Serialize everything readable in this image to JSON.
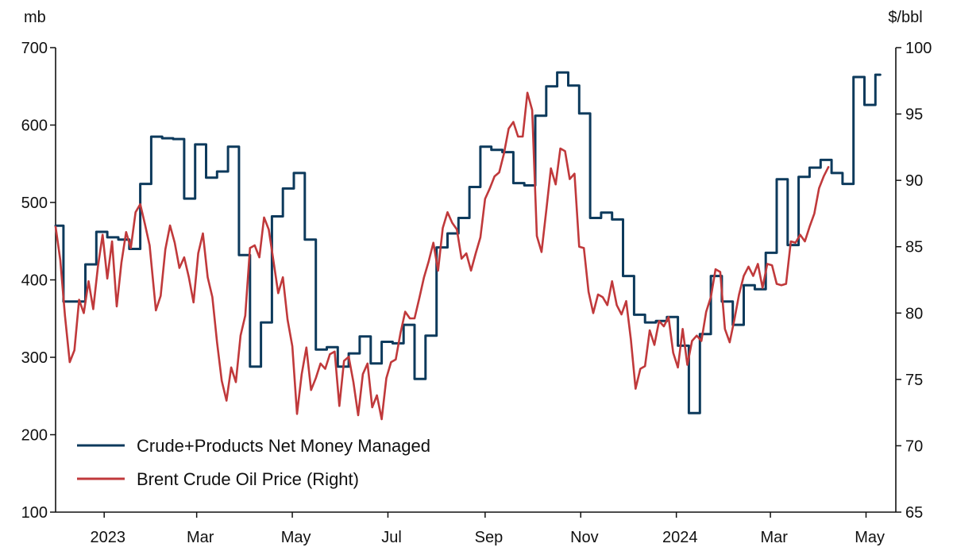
{
  "chart_data": {
    "type": "line",
    "title": "",
    "left_axis": {
      "unit": "mb",
      "range": [
        100,
        700
      ],
      "ticks": [
        100,
        200,
        300,
        400,
        500,
        600,
        700
      ]
    },
    "right_axis": {
      "unit": "$/bbl",
      "range": [
        65,
        100
      ],
      "ticks": [
        65,
        70,
        75,
        80,
        85,
        90,
        95,
        100
      ]
    },
    "x_axis": {
      "range": [
        "2022-12-01",
        "2024-05-20"
      ],
      "tick_dates": [
        "2023-01-01",
        "2023-03-01",
        "2023-05-01",
        "2023-07-01",
        "2023-09-01",
        "2023-11-01",
        "2024-01-01",
        "2024-03-01",
        "2024-05-01"
      ],
      "tick_labels": [
        "2023",
        "Mar",
        "May",
        "Jul",
        "Sep",
        "Nov",
        "2024",
        "Mar",
        "May"
      ]
    },
    "grid": false,
    "legend_position": "bottom-left",
    "series": [
      {
        "name": "Crude+Products Net Money Managed",
        "axis": "left",
        "color": "#0d3a5c",
        "step": true,
        "points": [
          [
            "2022-12-01",
            470
          ],
          [
            "2022-12-06",
            372
          ],
          [
            "2022-12-13",
            372
          ],
          [
            "2022-12-20",
            420
          ],
          [
            "2022-12-27",
            462
          ],
          [
            "2023-01-03",
            455
          ],
          [
            "2023-01-10",
            452
          ],
          [
            "2023-01-17",
            440
          ],
          [
            "2023-01-24",
            524
          ],
          [
            "2023-01-31",
            585
          ],
          [
            "2023-02-07",
            583
          ],
          [
            "2023-02-14",
            582
          ],
          [
            "2023-02-21",
            505
          ],
          [
            "2023-02-28",
            575
          ],
          [
            "2023-03-07",
            532
          ],
          [
            "2023-03-14",
            540
          ],
          [
            "2023-03-21",
            572
          ],
          [
            "2023-03-28",
            432
          ],
          [
            "2023-04-04",
            288
          ],
          [
            "2023-04-11",
            345
          ],
          [
            "2023-04-18",
            482
          ],
          [
            "2023-04-25",
            518
          ],
          [
            "2023-05-02",
            538
          ],
          [
            "2023-05-09",
            452
          ],
          [
            "2023-05-16",
            310
          ],
          [
            "2023-05-23",
            313
          ],
          [
            "2023-05-30",
            288
          ],
          [
            "2023-06-06",
            305
          ],
          [
            "2023-06-13",
            327
          ],
          [
            "2023-06-20",
            292
          ],
          [
            "2023-06-27",
            320
          ],
          [
            "2023-07-04",
            318
          ],
          [
            "2023-07-11",
            342
          ],
          [
            "2023-07-18",
            272
          ],
          [
            "2023-07-25",
            328
          ],
          [
            "2023-08-01",
            442
          ],
          [
            "2023-08-08",
            460
          ],
          [
            "2023-08-15",
            480
          ],
          [
            "2023-08-22",
            520
          ],
          [
            "2023-08-29",
            572
          ],
          [
            "2023-09-05",
            568
          ],
          [
            "2023-09-12",
            565
          ],
          [
            "2023-09-19",
            525
          ],
          [
            "2023-09-26",
            522
          ],
          [
            "2023-10-03",
            612
          ],
          [
            "2023-10-10",
            650
          ],
          [
            "2023-10-17",
            668
          ],
          [
            "2023-10-24",
            651
          ],
          [
            "2023-10-31",
            615
          ],
          [
            "2023-11-07",
            480
          ],
          [
            "2023-11-14",
            487
          ],
          [
            "2023-11-21",
            478
          ],
          [
            "2023-11-28",
            405
          ],
          [
            "2023-12-05",
            355
          ],
          [
            "2023-12-12",
            345
          ],
          [
            "2023-12-19",
            347
          ],
          [
            "2023-12-26",
            352
          ],
          [
            "2024-01-02",
            315
          ],
          [
            "2024-01-09",
            228
          ],
          [
            "2024-01-16",
            330
          ],
          [
            "2024-01-23",
            405
          ],
          [
            "2024-01-30",
            372
          ],
          [
            "2024-02-06",
            342
          ],
          [
            "2024-02-13",
            393
          ],
          [
            "2024-02-20",
            388
          ],
          [
            "2024-02-27",
            435
          ],
          [
            "2024-03-05",
            530
          ],
          [
            "2024-03-12",
            445
          ],
          [
            "2024-03-19",
            533
          ],
          [
            "2024-03-26",
            545
          ],
          [
            "2024-04-02",
            555
          ],
          [
            "2024-04-09",
            538
          ],
          [
            "2024-04-16",
            524
          ],
          [
            "2024-04-23",
            662
          ],
          [
            "2024-04-30",
            626
          ],
          [
            "2024-05-07",
            665
          ],
          [
            "2024-05-10",
            665
          ]
        ]
      },
      {
        "name": "Brent Crude Oil Price (Right)",
        "axis": "right",
        "color": "#c0393b",
        "step": false,
        "points": [
          [
            "2022-12-01",
            86.5
          ],
          [
            "2022-12-04",
            84.0
          ],
          [
            "2022-12-07",
            79.8
          ],
          [
            "2022-12-10",
            76.3
          ],
          [
            "2022-12-13",
            77.2
          ],
          [
            "2022-12-16",
            81.0
          ],
          [
            "2022-12-19",
            80.0
          ],
          [
            "2022-12-22",
            82.4
          ],
          [
            "2022-12-25",
            80.3
          ],
          [
            "2022-12-28",
            83.5
          ],
          [
            "2022-12-31",
            85.9
          ],
          [
            "2023-01-03",
            82.6
          ],
          [
            "2023-01-06",
            85.4
          ],
          [
            "2023-01-09",
            80.5
          ],
          [
            "2023-01-12",
            83.8
          ],
          [
            "2023-01-15",
            86.1
          ],
          [
            "2023-01-18",
            84.9
          ],
          [
            "2023-01-21",
            87.6
          ],
          [
            "2023-01-24",
            88.2
          ],
          [
            "2023-01-27",
            86.7
          ],
          [
            "2023-01-30",
            85.1
          ],
          [
            "2023-02-03",
            80.2
          ],
          [
            "2023-02-06",
            81.3
          ],
          [
            "2023-02-09",
            84.8
          ],
          [
            "2023-02-12",
            86.6
          ],
          [
            "2023-02-15",
            85.3
          ],
          [
            "2023-02-18",
            83.4
          ],
          [
            "2023-02-21",
            84.2
          ],
          [
            "2023-02-24",
            82.7
          ],
          [
            "2023-02-27",
            80.8
          ],
          [
            "2023-03-02",
            84.5
          ],
          [
            "2023-03-05",
            86.0
          ],
          [
            "2023-03-08",
            82.7
          ],
          [
            "2023-03-11",
            81.2
          ],
          [
            "2023-03-14",
            77.8
          ],
          [
            "2023-03-17",
            74.9
          ],
          [
            "2023-03-20",
            73.4
          ],
          [
            "2023-03-23",
            75.9
          ],
          [
            "2023-03-26",
            74.8
          ],
          [
            "2023-03-29",
            78.3
          ],
          [
            "2023-04-01",
            79.8
          ],
          [
            "2023-04-04",
            84.9
          ],
          [
            "2023-04-07",
            85.1
          ],
          [
            "2023-04-10",
            84.2
          ],
          [
            "2023-04-13",
            87.2
          ],
          [
            "2023-04-16",
            86.3
          ],
          [
            "2023-04-19",
            83.9
          ],
          [
            "2023-04-22",
            81.5
          ],
          [
            "2023-04-25",
            82.7
          ],
          [
            "2023-04-28",
            79.5
          ],
          [
            "2023-05-01",
            77.5
          ],
          [
            "2023-05-04",
            72.4
          ],
          [
            "2023-05-07",
            75.4
          ],
          [
            "2023-05-10",
            77.4
          ],
          [
            "2023-05-13",
            74.2
          ],
          [
            "2023-05-16",
            75.1
          ],
          [
            "2023-05-19",
            76.2
          ],
          [
            "2023-05-22",
            75.8
          ],
          [
            "2023-05-25",
            76.9
          ],
          [
            "2023-05-28",
            77.1
          ],
          [
            "2023-05-31",
            73.0
          ],
          [
            "2023-06-03",
            76.4
          ],
          [
            "2023-06-06",
            76.7
          ],
          [
            "2023-06-09",
            74.8
          ],
          [
            "2023-06-12",
            72.3
          ],
          [
            "2023-06-15",
            75.4
          ],
          [
            "2023-06-18",
            76.2
          ],
          [
            "2023-06-21",
            72.9
          ],
          [
            "2023-06-24",
            73.8
          ],
          [
            "2023-06-27",
            72.0
          ],
          [
            "2023-06-30",
            75.1
          ],
          [
            "2023-07-03",
            76.3
          ],
          [
            "2023-07-06",
            76.5
          ],
          [
            "2023-07-09",
            78.5
          ],
          [
            "2023-07-12",
            80.1
          ],
          [
            "2023-07-15",
            79.6
          ],
          [
            "2023-07-18",
            79.6
          ],
          [
            "2023-07-21",
            81.1
          ],
          [
            "2023-07-24",
            82.7
          ],
          [
            "2023-07-27",
            83.9
          ],
          [
            "2023-07-30",
            85.3
          ],
          [
            "2023-08-02",
            83.2
          ],
          [
            "2023-08-05",
            86.4
          ],
          [
            "2023-08-08",
            87.6
          ],
          [
            "2023-08-11",
            86.8
          ],
          [
            "2023-08-14",
            86.3
          ],
          [
            "2023-08-17",
            84.1
          ],
          [
            "2023-08-20",
            84.5
          ],
          [
            "2023-08-23",
            83.2
          ],
          [
            "2023-08-26",
            84.5
          ],
          [
            "2023-08-29",
            85.7
          ],
          [
            "2023-09-01",
            88.6
          ],
          [
            "2023-09-04",
            89.4
          ],
          [
            "2023-09-07",
            90.3
          ],
          [
            "2023-09-10",
            90.6
          ],
          [
            "2023-09-13",
            92.0
          ],
          [
            "2023-09-16",
            93.9
          ],
          [
            "2023-09-19",
            94.4
          ],
          [
            "2023-09-22",
            93.3
          ],
          [
            "2023-09-25",
            93.3
          ],
          [
            "2023-09-28",
            96.6
          ],
          [
            "2023-10-01",
            95.3
          ],
          [
            "2023-10-04",
            85.8
          ],
          [
            "2023-10-07",
            84.6
          ],
          [
            "2023-10-10",
            87.7
          ],
          [
            "2023-10-13",
            90.9
          ],
          [
            "2023-10-16",
            89.7
          ],
          [
            "2023-10-19",
            92.4
          ],
          [
            "2023-10-22",
            92.2
          ],
          [
            "2023-10-25",
            90.1
          ],
          [
            "2023-10-28",
            90.5
          ],
          [
            "2023-10-31",
            85.0
          ],
          [
            "2023-11-03",
            84.9
          ],
          [
            "2023-11-06",
            81.6
          ],
          [
            "2023-11-09",
            80.0
          ],
          [
            "2023-11-12",
            81.4
          ],
          [
            "2023-11-15",
            81.2
          ],
          [
            "2023-11-18",
            80.6
          ],
          [
            "2023-11-21",
            82.4
          ],
          [
            "2023-11-24",
            80.6
          ],
          [
            "2023-11-27",
            79.9
          ],
          [
            "2023-11-30",
            80.9
          ],
          [
            "2023-12-03",
            78.0
          ],
          [
            "2023-12-06",
            74.3
          ],
          [
            "2023-12-09",
            75.8
          ],
          [
            "2023-12-12",
            76.0
          ],
          [
            "2023-12-15",
            78.7
          ],
          [
            "2023-12-18",
            77.6
          ],
          [
            "2023-12-21",
            79.4
          ],
          [
            "2023-12-24",
            79.0
          ],
          [
            "2023-12-27",
            79.7
          ],
          [
            "2023-12-30",
            77.0
          ],
          [
            "2024-01-02",
            75.9
          ],
          [
            "2024-01-05",
            78.8
          ],
          [
            "2024-01-08",
            76.1
          ],
          [
            "2024-01-11",
            77.9
          ],
          [
            "2024-01-14",
            78.3
          ],
          [
            "2024-01-17",
            77.9
          ],
          [
            "2024-01-20",
            80.1
          ],
          [
            "2024-01-23",
            81.2
          ],
          [
            "2024-01-26",
            83.3
          ],
          [
            "2024-01-29",
            83.1
          ],
          [
            "2024-02-01",
            78.8
          ],
          [
            "2024-02-04",
            77.8
          ],
          [
            "2024-02-07",
            79.5
          ],
          [
            "2024-02-10",
            81.4
          ],
          [
            "2024-02-13",
            82.8
          ],
          [
            "2024-02-16",
            83.5
          ],
          [
            "2024-02-19",
            82.8
          ],
          [
            "2024-02-22",
            83.7
          ],
          [
            "2024-02-25",
            81.9
          ],
          [
            "2024-02-28",
            83.7
          ],
          [
            "2024-03-02",
            83.6
          ],
          [
            "2024-03-05",
            82.2
          ],
          [
            "2024-03-08",
            82.1
          ],
          [
            "2024-03-11",
            82.2
          ],
          [
            "2024-03-14",
            85.4
          ],
          [
            "2024-03-17",
            85.3
          ],
          [
            "2024-03-20",
            85.9
          ],
          [
            "2024-03-23",
            85.4
          ],
          [
            "2024-03-26",
            86.5
          ],
          [
            "2024-03-29",
            87.5
          ],
          [
            "2024-04-01",
            89.4
          ],
          [
            "2024-04-04",
            90.3
          ],
          [
            "2024-04-07",
            91.0
          ]
        ]
      }
    ]
  }
}
